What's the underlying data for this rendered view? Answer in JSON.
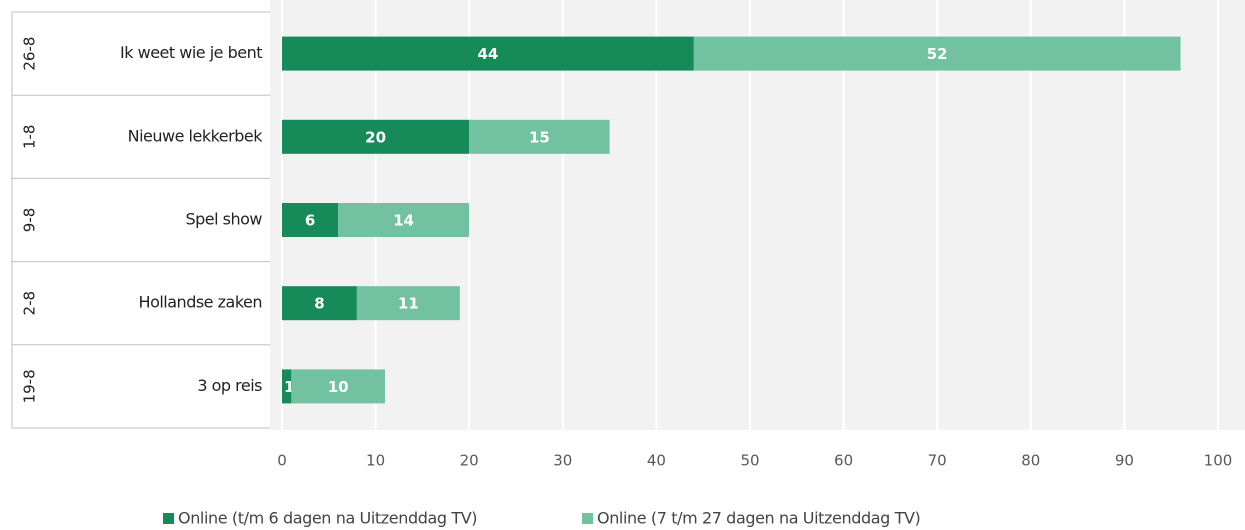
{
  "chart_data": {
    "type": "stacked_bar_horizontal",
    "groups": [
      "26-8",
      "1-8",
      "9-8",
      "2-8",
      "19-8"
    ],
    "categories": [
      "Ik weet wie je bent",
      "Nieuwe lekkerbek",
      "Spel show",
      "Hollandse zaken",
      "3 op reis"
    ],
    "series": [
      {
        "name": "Online (t/m 6 dagen na Uitzenddag TV)",
        "color": "#178a5a",
        "values": [
          44,
          20,
          6,
          8,
          1
        ]
      },
      {
        "name": "Online (7 t/m 27 dagen na Uitzenddag TV)",
        "color": "#72c2a2",
        "values": [
          52,
          15,
          14,
          11,
          10
        ]
      }
    ],
    "xlim": [
      0,
      100
    ],
    "xticks": [
      0,
      10,
      20,
      30,
      40,
      50,
      60,
      70,
      80,
      90,
      100
    ],
    "grid": true
  }
}
